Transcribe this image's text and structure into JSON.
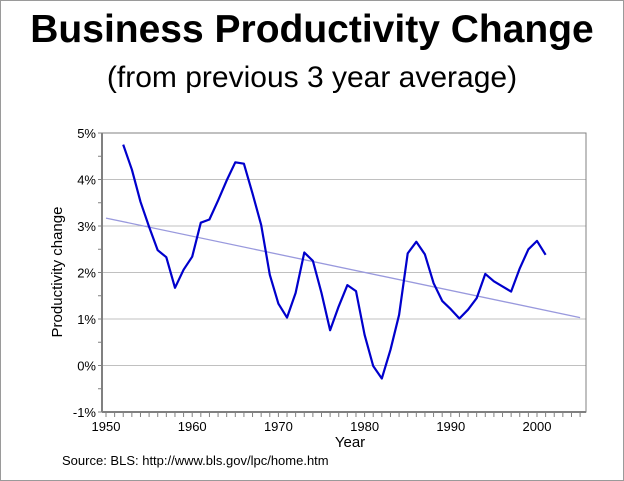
{
  "chart_data": {
    "type": "line",
    "title": "Business Productivity Change",
    "subtitle": "(from previous 3 year average)",
    "xlabel": "Year",
    "ylabel": "Productivity change",
    "source": "Source: BLS: http://www.bls.gov/lpc/home.htm",
    "xlim": [
      1950,
      2005
    ],
    "ylim": [
      -1,
      5
    ],
    "x_ticks": [
      1950,
      1960,
      1970,
      1980,
      1990,
      2000
    ],
    "x_tick_labels": [
      "1950",
      "1960",
      "1970",
      "1980",
      "1990",
      "2000"
    ],
    "y_ticks": [
      -1,
      0,
      1,
      2,
      3,
      4,
      5
    ],
    "y_tick_labels": [
      "-1%",
      "0%",
      "1%",
      "2%",
      "3%",
      "4%",
      "5%"
    ],
    "grid": "horizontal",
    "legend": "none",
    "series": [
      {
        "name": "Productivity change",
        "color": "#0000cc",
        "x": [
          1952,
          1953,
          1954,
          1955,
          1956,
          1957,
          1958,
          1959,
          1960,
          1961,
          1962,
          1963,
          1964,
          1965,
          1966,
          1967,
          1968,
          1969,
          1970,
          1971,
          1972,
          1973,
          1974,
          1975,
          1976,
          1977,
          1978,
          1979,
          1980,
          1981,
          1982,
          1983,
          1984,
          1985,
          1986,
          1987,
          1988,
          1989,
          1990,
          1991,
          1992,
          1993,
          1994,
          1995,
          1996,
          1997,
          1998,
          1999,
          2000,
          2001
        ],
        "values": [
          4.75,
          4.21,
          3.52,
          2.98,
          2.48,
          2.33,
          1.67,
          2.06,
          2.34,
          3.07,
          3.14,
          3.55,
          3.98,
          4.37,
          4.34,
          3.7,
          3.02,
          1.95,
          1.33,
          1.03,
          1.56,
          2.43,
          2.25,
          1.56,
          0.76,
          1.27,
          1.73,
          1.6,
          0.66,
          -0.01,
          -0.28,
          0.34,
          1.09,
          2.41,
          2.66,
          2.39,
          1.77,
          1.39,
          1.21,
          1.01,
          1.2,
          1.45,
          1.97,
          1.81,
          1.7,
          1.59,
          2.09,
          2.5,
          2.68,
          2.38
        ]
      },
      {
        "name": "Trend",
        "color": "#9999dd",
        "x": [
          1950,
          2005
        ],
        "values": [
          3.17,
          1.03
        ]
      }
    ]
  }
}
